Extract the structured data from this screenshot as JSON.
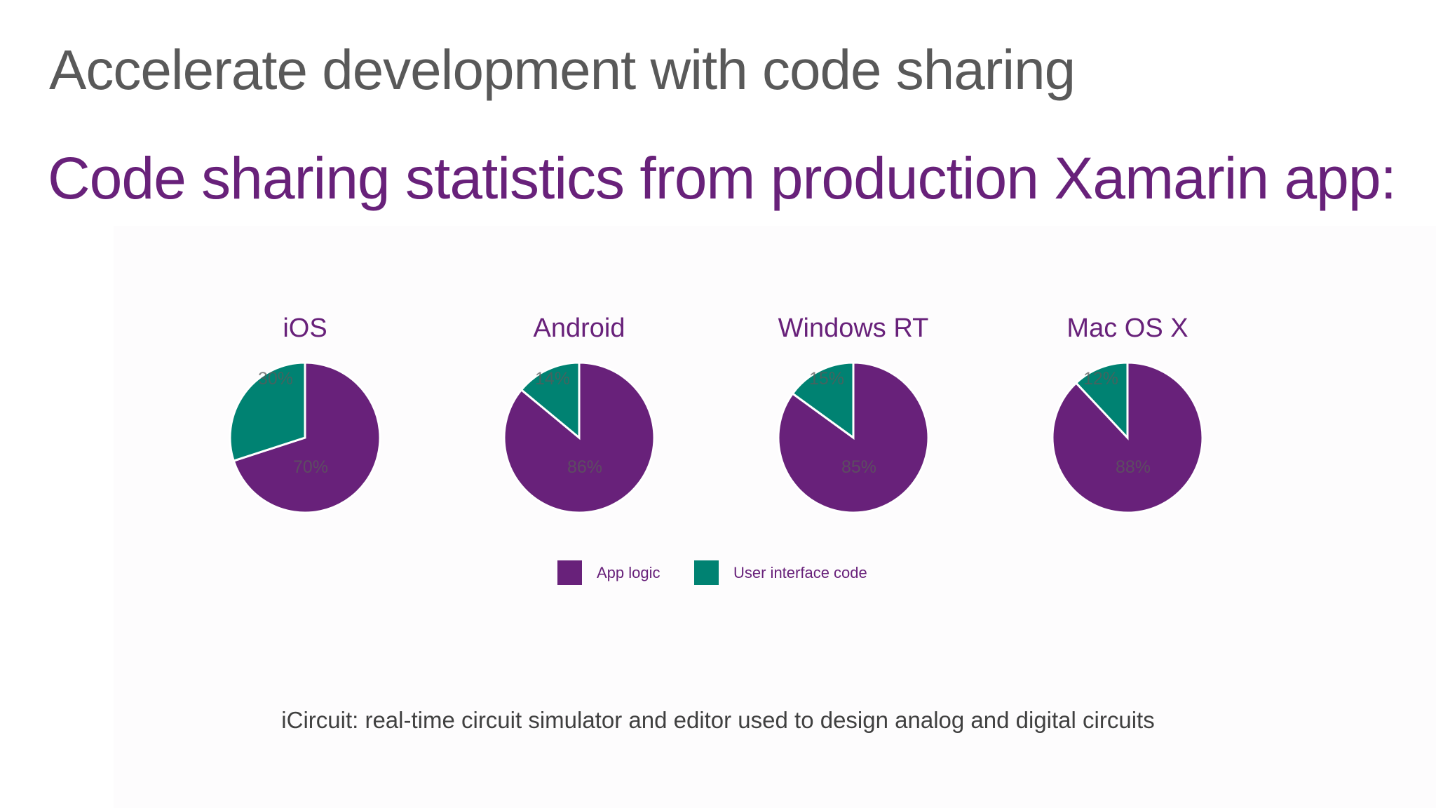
{
  "slide": {
    "title": "Accelerate development with code sharing",
    "subtitle": "Code sharing statistics from production Xamarin app:",
    "caption": "iCircuit: real-time circuit simulator and editor used to design analog and digital circuits"
  },
  "colors": {
    "app_logic": "#68217a",
    "user_interface": "#008272",
    "title": "#595959",
    "accent": "#68217a"
  },
  "chart_data": [
    {
      "type": "pie",
      "title": "iOS",
      "categories": [
        "App logic",
        "User interface code"
      ],
      "values": [
        70,
        30
      ],
      "labels": [
        "70%",
        "30%"
      ]
    },
    {
      "type": "pie",
      "title": "Android",
      "categories": [
        "App logic",
        "User interface code"
      ],
      "values": [
        86,
        14
      ],
      "labels": [
        "86%",
        "14%"
      ]
    },
    {
      "type": "pie",
      "title": "Windows RT",
      "categories": [
        "App logic",
        "User interface code"
      ],
      "values": [
        85,
        15
      ],
      "labels": [
        "85%",
        "15%"
      ]
    },
    {
      "type": "pie",
      "title": "Mac OS X",
      "categories": [
        "App logic",
        "User interface code"
      ],
      "values": [
        88,
        12
      ],
      "labels": [
        "88%",
        "12%"
      ]
    }
  ],
  "legend": {
    "placement": "bottom",
    "items": [
      {
        "label": "App logic",
        "color": "#68217a"
      },
      {
        "label": "User interface code",
        "color": "#008272"
      }
    ]
  }
}
